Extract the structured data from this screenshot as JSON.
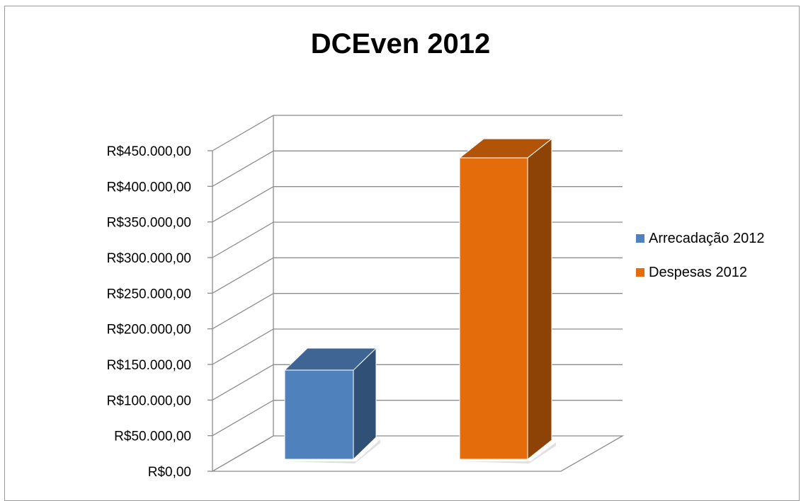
{
  "chart_data": {
    "type": "bar",
    "title": "DCEven 2012",
    "categories": [
      "Arrecadação 2012",
      "Despesas 2012"
    ],
    "series": [
      {
        "name": "Arrecadação 2012",
        "values": [
          142000,
          null
        ],
        "color": "#4f81bd"
      },
      {
        "name": "Despesas 2012",
        "values": [
          null,
          440000
        ],
        "color": "#e46c0a"
      }
    ],
    "ylim": [
      0,
      450000
    ],
    "yticks": [
      "R$0,00",
      "R$50.000,00",
      "R$100.000,00",
      "R$150.000,00",
      "R$200.000,00",
      "R$250.000,00",
      "R$300.000,00",
      "R$350.000,00",
      "R$400.000,00",
      "R$450.000,00"
    ],
    "xlabel": "",
    "ylabel": "",
    "grid": true,
    "style": "3d-column",
    "legend_position": "right"
  }
}
